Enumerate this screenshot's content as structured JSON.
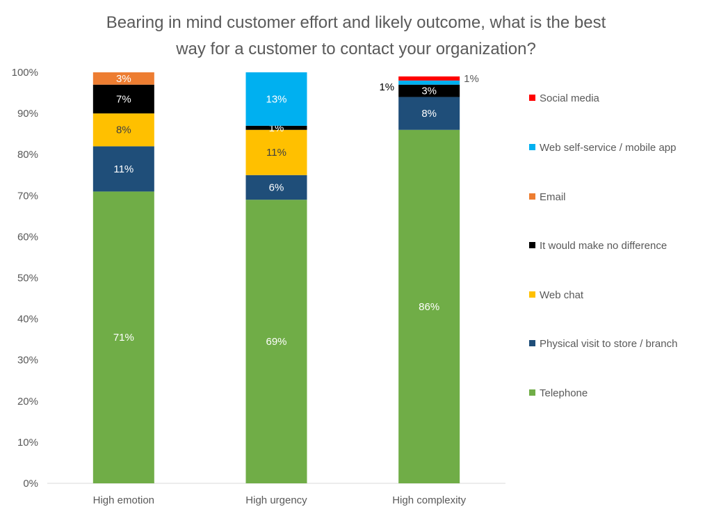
{
  "chart_data": {
    "type": "bar",
    "stacked": true,
    "title": "Bearing in mind customer effort and likely outcome, what is the best way for a customer to contact your organization?",
    "title_lines": [
      "Bearing in mind customer effort and likely outcome, what is the best",
      "way for a customer to contact your organization?"
    ],
    "categories": [
      "High emotion",
      "High urgency",
      "High complexity"
    ],
    "ylim": [
      0,
      100
    ],
    "yticks": [
      "0%",
      "10%",
      "20%",
      "30%",
      "40%",
      "50%",
      "60%",
      "70%",
      "80%",
      "90%",
      "100%"
    ],
    "grid": false,
    "legend_position": "right",
    "series": [
      {
        "name": "Telephone",
        "color": "#70AD47",
        "label_color": "#FFFFFF",
        "values": [
          71,
          69,
          86
        ]
      },
      {
        "name": "Physical visit to store / branch",
        "color": "#1F4E79",
        "label_color": "#FFFFFF",
        "values": [
          11,
          6,
          8
        ]
      },
      {
        "name": "Web chat",
        "color": "#FFC000",
        "label_color": "#404040",
        "values": [
          8,
          11,
          null
        ]
      },
      {
        "name": "It would make no difference",
        "color": "#000000",
        "label_color": "#FFFFFF",
        "values": [
          7,
          1,
          3
        ]
      },
      {
        "name": "Email",
        "color": "#ED7D31",
        "label_color": "#FFFFFF",
        "values": [
          3,
          null,
          null
        ]
      },
      {
        "name": "Web self-service / mobile app",
        "color": "#00B0F0",
        "label_color": "#FFFFFF",
        "values": [
          null,
          13,
          1
        ]
      },
      {
        "name": "Social media",
        "color": "#FF0000",
        "label_color": "#595959",
        "values": [
          null,
          null,
          1
        ]
      }
    ]
  }
}
